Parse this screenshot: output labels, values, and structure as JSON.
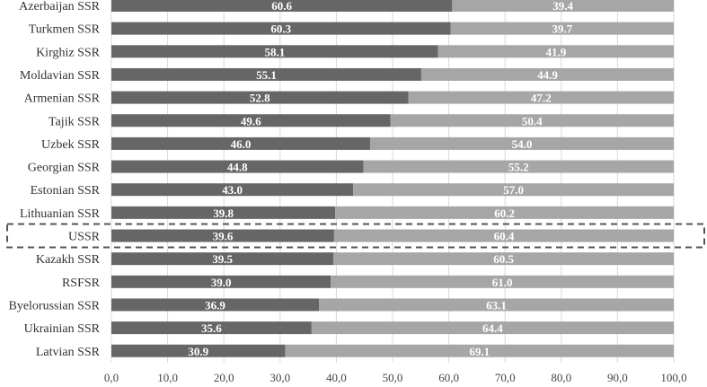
{
  "chart_data": {
    "type": "bar",
    "orientation": "horizontal",
    "stacked": true,
    "categories": [
      "Azerbaijan SSR",
      "Turkmen SSR",
      "Kirghiz SSR",
      "Moldavian SSR",
      "Armenian SSR",
      "Tajik SSR",
      "Uzbek SSR",
      "Georgian SSR",
      "Estonian SSR",
      "Lithuanian SSR",
      "USSR",
      "Kazakh SSR",
      "RSFSR",
      "Byelorussian SSR",
      "Ukrainian SSR",
      "Latvian SSR"
    ],
    "series": [
      {
        "color": "#666666",
        "values": [
          60.6,
          60.3,
          58.1,
          55.1,
          52.8,
          49.6,
          46.0,
          44.8,
          43.0,
          39.8,
          39.6,
          39.5,
          39.0,
          36.9,
          35.6,
          30.9
        ],
        "labels": [
          "60.6",
          "60.3",
          "58.1",
          "55.1",
          "52.8",
          "49.6",
          "46.0",
          "44.8",
          "43.0",
          "39.8",
          "39.6",
          "39.5",
          "39.0",
          "36.9",
          "35.6",
          "30.9"
        ]
      },
      {
        "color": "#a6a6a6",
        "values": [
          39.4,
          39.7,
          41.9,
          44.9,
          47.2,
          50.4,
          54.0,
          55.2,
          57.0,
          60.2,
          60.4,
          60.5,
          61.0,
          63.1,
          64.4,
          69.1
        ],
        "labels": [
          "39.4",
          "39.7",
          "41.9",
          "44.9",
          "47.2",
          "50.4",
          "54.0",
          "55.2",
          "57.0",
          "60.2",
          "60.4",
          "60.5",
          "61.0",
          "63.1",
          "64.4",
          "69.1"
        ]
      }
    ],
    "xlim": [
      0,
      100
    ],
    "xticks": [
      "0,0",
      "10,0",
      "20,0",
      "30,0",
      "40,0",
      "50,0",
      "60,0",
      "70,0",
      "80,0",
      "90,0",
      "100,0"
    ],
    "highlighted_category": "USSR",
    "grid": true
  }
}
